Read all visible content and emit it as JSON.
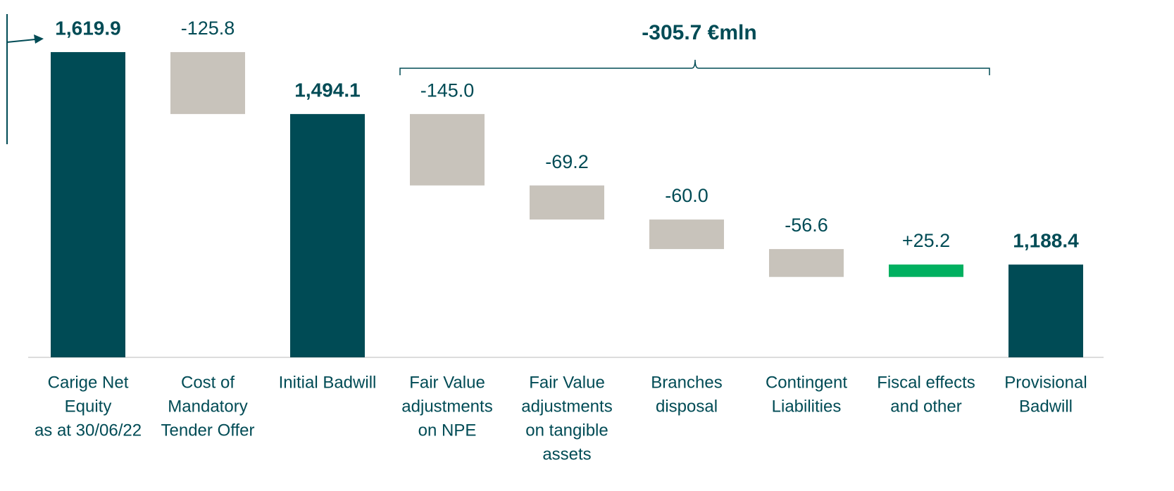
{
  "chart_data": {
    "type": "waterfall",
    "categories": [
      [
        "Carige Net",
        "Equity",
        "as at 30/06/22"
      ],
      [
        "Cost of",
        "Mandatory",
        "Tender Offer"
      ],
      [
        "Initial Badwill"
      ],
      [
        "Fair Value",
        "adjustments",
        "on NPE"
      ],
      [
        "Fair Value",
        "adjustments",
        "on tangible",
        "assets"
      ],
      [
        "Branches",
        "disposal"
      ],
      [
        "Contingent",
        "Liabilities"
      ],
      [
        "Fiscal effects",
        "and other"
      ],
      [
        "Provisional",
        "Badwill"
      ]
    ],
    "values": [
      1619.9,
      -125.8,
      1494.1,
      -145.0,
      -69.2,
      -60.0,
      -56.6,
      25.2,
      1188.4
    ],
    "value_labels": [
      "1,619.9",
      "-125.8",
      "1,494.1",
      "-145.0",
      "-69.2",
      "-60.0",
      "-56.6",
      "+25.2",
      "1,188.4"
    ],
    "kinds": [
      "total",
      "delta",
      "total",
      "delta",
      "delta",
      "delta",
      "delta",
      "delta",
      "total"
    ],
    "colors": {
      "total": "#004b55",
      "negative": "#c8c3bb",
      "positive": "#00b060"
    },
    "annotation": "-305.7 €mln",
    "ylim": [
      1000,
      1700
    ]
  }
}
